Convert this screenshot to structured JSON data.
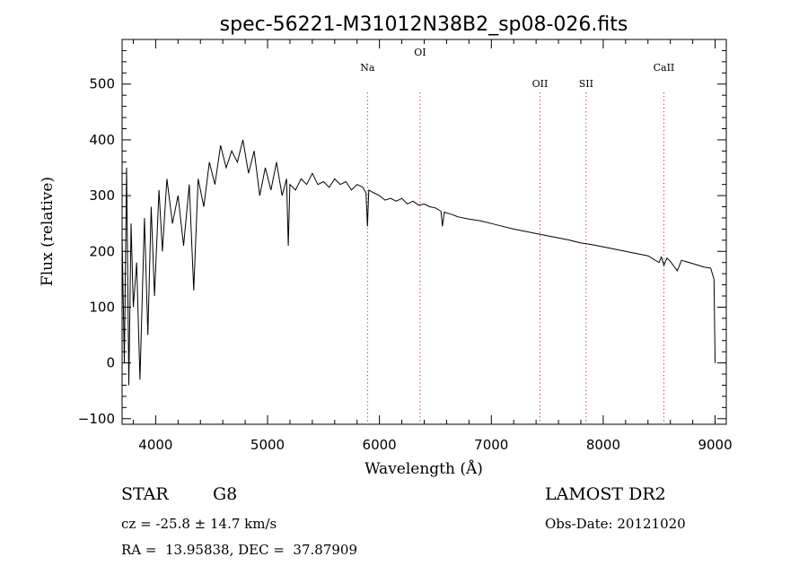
{
  "chart_data": {
    "type": "line",
    "title": "spec-56221-M31012N38B2_sp08-026.fits",
    "xlabel": "Wavelength (Å)",
    "ylabel": "Flux (relative)",
    "xlim": [
      3700,
      9100
    ],
    "ylim": [
      -110,
      580
    ],
    "xticks": [
      4000,
      5000,
      6000,
      7000,
      8000,
      9000
    ],
    "yticks": [
      -100,
      0,
      100,
      200,
      300,
      400,
      500
    ],
    "series": [
      {
        "x": [
          3700,
          3720,
          3740,
          3760,
          3780,
          3800,
          3830,
          3860,
          3900,
          3930,
          3960,
          3990,
          4030,
          4060,
          4100,
          4150,
          4200,
          4250,
          4300,
          4340,
          4380,
          4430,
          4480,
          4530,
          4580,
          4630,
          4680,
          4730,
          4780,
          4830,
          4880,
          4930,
          4980,
          5030,
          5080,
          5130,
          5170,
          5185,
          5200,
          5250,
          5300,
          5350,
          5400,
          5450,
          5500,
          5550,
          5600,
          5650,
          5700,
          5750,
          5800,
          5850,
          5880,
          5893,
          5905,
          5950,
          6000,
          6050,
          6100,
          6150,
          6200,
          6250,
          6300,
          6350,
          6400,
          6450,
          6500,
          6550,
          6563,
          6580,
          6650,
          6700,
          6800,
          6900,
          7000,
          7100,
          7200,
          7300,
          7400,
          7500,
          7600,
          7700,
          7800,
          7900,
          8000,
          8100,
          8200,
          8300,
          8400,
          8498,
          8520,
          8542,
          8570,
          8600,
          8662,
          8700,
          8800,
          8900,
          8960,
          8990,
          9000
        ],
        "y": [
          230,
          0,
          350,
          -40,
          250,
          100,
          180,
          -30,
          260,
          50,
          280,
          120,
          310,
          200,
          330,
          250,
          300,
          210,
          320,
          130,
          330,
          280,
          360,
          320,
          390,
          350,
          380,
          360,
          400,
          340,
          380,
          300,
          350,
          310,
          360,
          300,
          330,
          210,
          320,
          310,
          330,
          320,
          340,
          320,
          325,
          315,
          330,
          320,
          325,
          310,
          320,
          315,
          305,
          245,
          310,
          305,
          300,
          292,
          295,
          290,
          295,
          285,
          290,
          283,
          285,
          280,
          278,
          272,
          245,
          270,
          266,
          262,
          258,
          255,
          250,
          245,
          240,
          236,
          232,
          228,
          224,
          220,
          215,
          212,
          208,
          204,
          200,
          196,
          192,
          180,
          190,
          175,
          188,
          182,
          165,
          184,
          178,
          172,
          170,
          150,
          0
        ]
      }
    ],
    "line_markers": [
      {
        "name": "Na",
        "x": 5893
      },
      {
        "name": "OI",
        "x": 6363
      },
      {
        "name": "OII",
        "x": 7435
      },
      {
        "name": "SII",
        "x": 7847
      },
      {
        "name": "CaII",
        "x": 8542
      }
    ],
    "grid": false,
    "colors": {
      "line": "#000000",
      "marker": "#cc2222",
      "axes": "#000000"
    }
  },
  "info": {
    "class": "STAR",
    "subclass": "G8",
    "survey": "LAMOST DR2",
    "cz": "cz = -25.8 ± 14.7 km/s",
    "obs_date": "Obs-Date: 20121020",
    "radec": "RA =  13.95838, DEC =  37.87909"
  }
}
